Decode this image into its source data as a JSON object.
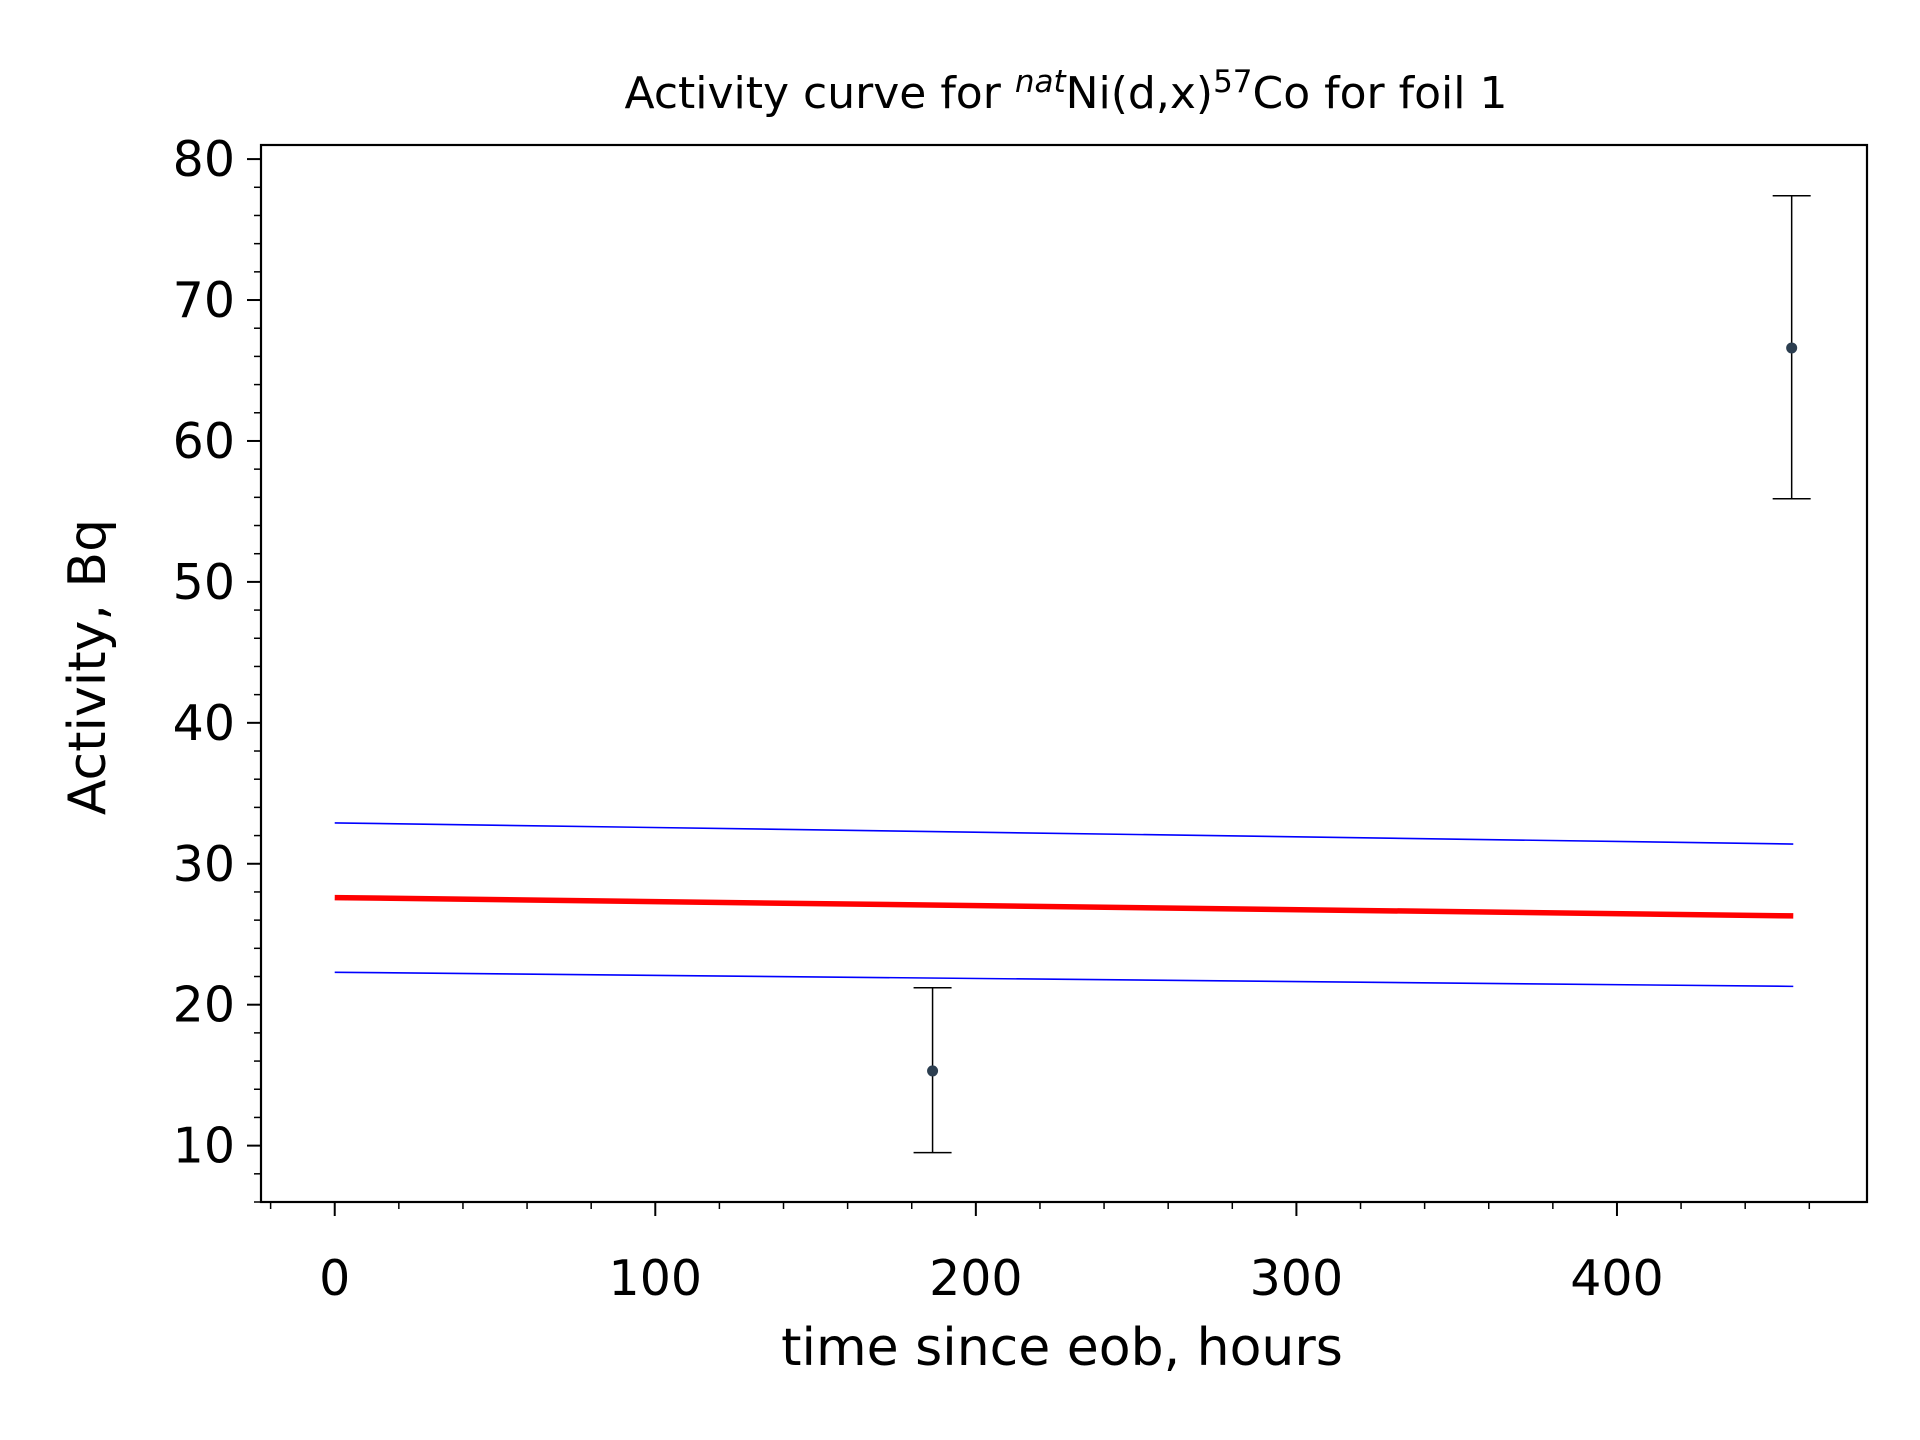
{
  "chart_data": {
    "type": "line",
    "title": {
      "prefix": "Activity curve for ",
      "sup1": "nat",
      "middle": "Ni(d,x)",
      "sup2": "57",
      "suffix": "Co for foil 1"
    },
    "xlabel": "time since eob, hours",
    "ylabel": "Activity, Bq",
    "xlim": [
      -23,
      478
    ],
    "ylim": [
      6,
      81
    ],
    "xticks": [
      0,
      100,
      200,
      300,
      400
    ],
    "yticks": [
      10,
      20,
      30,
      40,
      50,
      60,
      70,
      80
    ],
    "grid": false,
    "series": [
      {
        "kind": "line",
        "color": "#ff0000",
        "x": [
          0,
          455
        ],
        "y": [
          27.6,
          26.3
        ]
      },
      {
        "kind": "line",
        "color": "#0000ff",
        "x": [
          0,
          455
        ],
        "y": [
          32.9,
          31.4
        ]
      },
      {
        "kind": "line",
        "color": "#0000ff",
        "x": [
          0,
          455
        ],
        "y": [
          22.3,
          21.3
        ]
      },
      {
        "kind": "errorbar",
        "color": "#2c3e50",
        "x": [
          186.5,
          454.5
        ],
        "y": [
          15.3,
          66.6
        ],
        "yerr_low": [
          9.5,
          55.9
        ],
        "yerr_high": [
          21.2,
          77.4
        ]
      }
    ]
  }
}
